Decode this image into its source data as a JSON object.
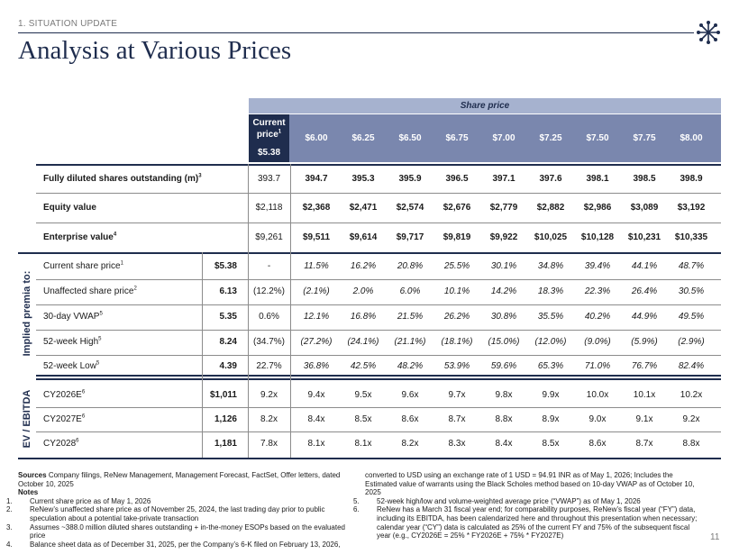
{
  "header": {
    "section_label": "1. SITUATION UPDATE",
    "title": "Analysis at Various Prices",
    "page_number": "11",
    "logo_icon": "starburst-logo-icon"
  },
  "colors": {
    "navy": "#1f2d4e",
    "header_mid": "#7a87ae",
    "header_light": "#a6b2cf"
  },
  "table": {
    "share_price_title": "Share price",
    "current_price_label": "Current price",
    "current_price_sup": "1",
    "current_price_value": "$5.38",
    "price_columns": [
      "$6.00",
      "$6.25",
      "$6.50",
      "$6.75",
      "$7.00",
      "$7.25",
      "$7.50",
      "$7.75",
      "$8.00"
    ],
    "summary_rows": [
      {
        "label": "Fully diluted shares outstanding (m)",
        "sup": "3",
        "current": "393.7",
        "values": [
          "394.7",
          "395.3",
          "395.9",
          "396.5",
          "397.1",
          "397.6",
          "398.1",
          "398.5",
          "398.9"
        ]
      },
      {
        "label": "Equity value",
        "sup": "",
        "current": "$2,118",
        "values": [
          "$2,368",
          "$2,471",
          "$2,574",
          "$2,676",
          "$2,779",
          "$2,882",
          "$2,986",
          "$3,089",
          "$3,192"
        ]
      },
      {
        "label": "Enterprise value",
        "sup": "4",
        "current": "$9,261",
        "values": [
          "$9,511",
          "$9,614",
          "$9,717",
          "$9,819",
          "$9,922",
          "$10,025",
          "$10,128",
          "$10,231",
          "$10,335"
        ]
      }
    ],
    "premia_label": "Implied premia to:",
    "premia_rows": [
      {
        "label": "Current share price",
        "sup": "1",
        "ref": "$5.38",
        "current": "-",
        "values": [
          "11.5%",
          "16.2%",
          "20.8%",
          "25.5%",
          "30.1%",
          "34.8%",
          "39.4%",
          "44.1%",
          "48.7%"
        ]
      },
      {
        "label": "Unaffected share price",
        "sup": "2",
        "ref": "6.13",
        "current": "(12.2%)",
        "values": [
          "(2.1%)",
          "2.0%",
          "6.0%",
          "10.1%",
          "14.2%",
          "18.3%",
          "22.3%",
          "26.4%",
          "30.5%"
        ]
      },
      {
        "label": "30-day VWAP",
        "sup": "5",
        "ref": "5.35",
        "current": "0.6%",
        "values": [
          "12.1%",
          "16.8%",
          "21.5%",
          "26.2%",
          "30.8%",
          "35.5%",
          "40.2%",
          "44.9%",
          "49.5%"
        ]
      },
      {
        "label": "52-week High",
        "sup": "5",
        "ref": "8.24",
        "current": "(34.7%)",
        "values": [
          "(27.2%)",
          "(24.1%)",
          "(21.1%)",
          "(18.1%)",
          "(15.0%)",
          "(12.0%)",
          "(9.0%)",
          "(5.9%)",
          "(2.9%)"
        ]
      },
      {
        "label": "52-week Low",
        "sup": "5",
        "ref": "4.39",
        "current": "22.7%",
        "values": [
          "36.8%",
          "42.5%",
          "48.2%",
          "53.9%",
          "59.6%",
          "65.3%",
          "71.0%",
          "76.7%",
          "82.4%"
        ]
      }
    ],
    "ebitda_label": "EV / EBITDA",
    "ebitda_rows": [
      {
        "label": "CY2026E",
        "sup": "6",
        "ref": "$1,011",
        "current": "9.2x",
        "values": [
          "9.4x",
          "9.5x",
          "9.6x",
          "9.7x",
          "9.8x",
          "9.9x",
          "10.0x",
          "10.1x",
          "10.2x"
        ]
      },
      {
        "label": "CY2027E",
        "sup": "6",
        "ref": "1,126",
        "current": "8.2x",
        "values": [
          "8.4x",
          "8.5x",
          "8.6x",
          "8.7x",
          "8.8x",
          "8.9x",
          "9.0x",
          "9.1x",
          "9.2x"
        ]
      },
      {
        "label": "CY2028",
        "sup": "6",
        "ref": "1,181",
        "current": "7.8x",
        "values": [
          "8.1x",
          "8.1x",
          "8.2x",
          "8.3x",
          "8.4x",
          "8.5x",
          "8.6x",
          "8.7x",
          "8.8x"
        ]
      }
    ]
  },
  "footnotes": {
    "sources_label": "Sources",
    "sources_text": "Company filings, ReNew Management, Management Forecast, FactSet, Offer letters, dated October 10, 2025",
    "notes_label": "Notes",
    "left": [
      {
        "n": "1.",
        "text": "Current share price as of May 1, 2026"
      },
      {
        "n": "2.",
        "text": "ReNew’s unaffected share price as of November 25, 2024, the last trading day prior to public speculation about a potential take-private transaction"
      },
      {
        "n": "3.",
        "text": "Assumes ~388.0 million diluted shares outstanding + in-the-money ESOPs based on the evaluated price"
      },
      {
        "n": "4.",
        "text": "Balance sheet data as of December 31, 2025, per the Company’s 6-K filed on February 13, 2026,"
      }
    ],
    "right_continuation": "converted to USD using an exchange rate of 1 USD = 94.91 INR as of May 1, 2026; Includes the Estimated value of warrants using the Black Scholes method based on 10-day VWAP as of October 10, 2025",
    "right": [
      {
        "n": "5.",
        "text": "52-week high/low and volume-weighted average price (“VWAP”) as of May 1, 2026"
      },
      {
        "n": "6.",
        "text": "ReNew has a March 31 fiscal year end; for comparability purposes, ReNew’s fiscal year (“FY”) data, including its EBITDA, has been calendarized here and throughout this presentation when necessary; calendar year (“CY”) data is calculated as 25% of the current FY and 75% of the subsequent fiscal year (e.g., CY2026E = 25% * FY2026E + 75% * FY2027E)"
      }
    ]
  }
}
